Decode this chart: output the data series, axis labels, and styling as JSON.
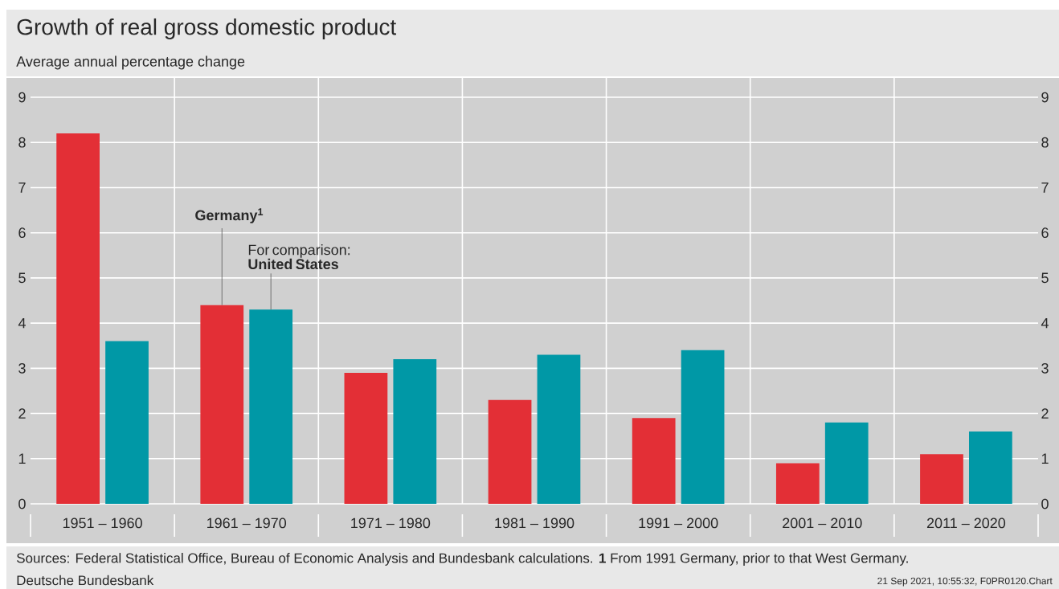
{
  "chart_data": {
    "type": "bar",
    "title": "Growth of real gross domestic product",
    "subtitle": "Average annual percentage change",
    "categories": [
      "1951 – 1960",
      "1961 – 1970",
      "1971 – 1980",
      "1981 – 1990",
      "1991 – 2000",
      "2001 – 2010",
      "2011 – 2020"
    ],
    "series": [
      {
        "name": "Germany$^{1}$",
        "color": "#e32f36",
        "values": [
          8.2,
          4.4,
          2.9,
          2.3,
          1.9,
          0.9,
          1.1
        ]
      },
      {
        "name": "For comparison: **United States**",
        "color": "#0098a6",
        "values": [
          3.6,
          4.3,
          3.2,
          3.3,
          3.4,
          1.8,
          1.6
        ]
      }
    ],
    "ylim": [
      0,
      9
    ],
    "yticks": [
      0,
      1,
      2,
      3,
      4,
      5,
      6,
      7,
      8,
      9
    ],
    "y2lim": [
      0,
      9
    ],
    "y2ticks": [
      0,
      1,
      2,
      3,
      4,
      5,
      6,
      7,
      8,
      9
    ],
    "grid": "y",
    "annotations": [
      "Sources: Federal Statistical Office, Bureau of Economic Analysis and Bundesbank calculations. **1** From 1991 Germany, prior to that West Germany.",
      "Deutsche Bundesbank",
      "21 Sep 2021, 10:55:32, F0PR0120.Chart"
    ]
  }
}
